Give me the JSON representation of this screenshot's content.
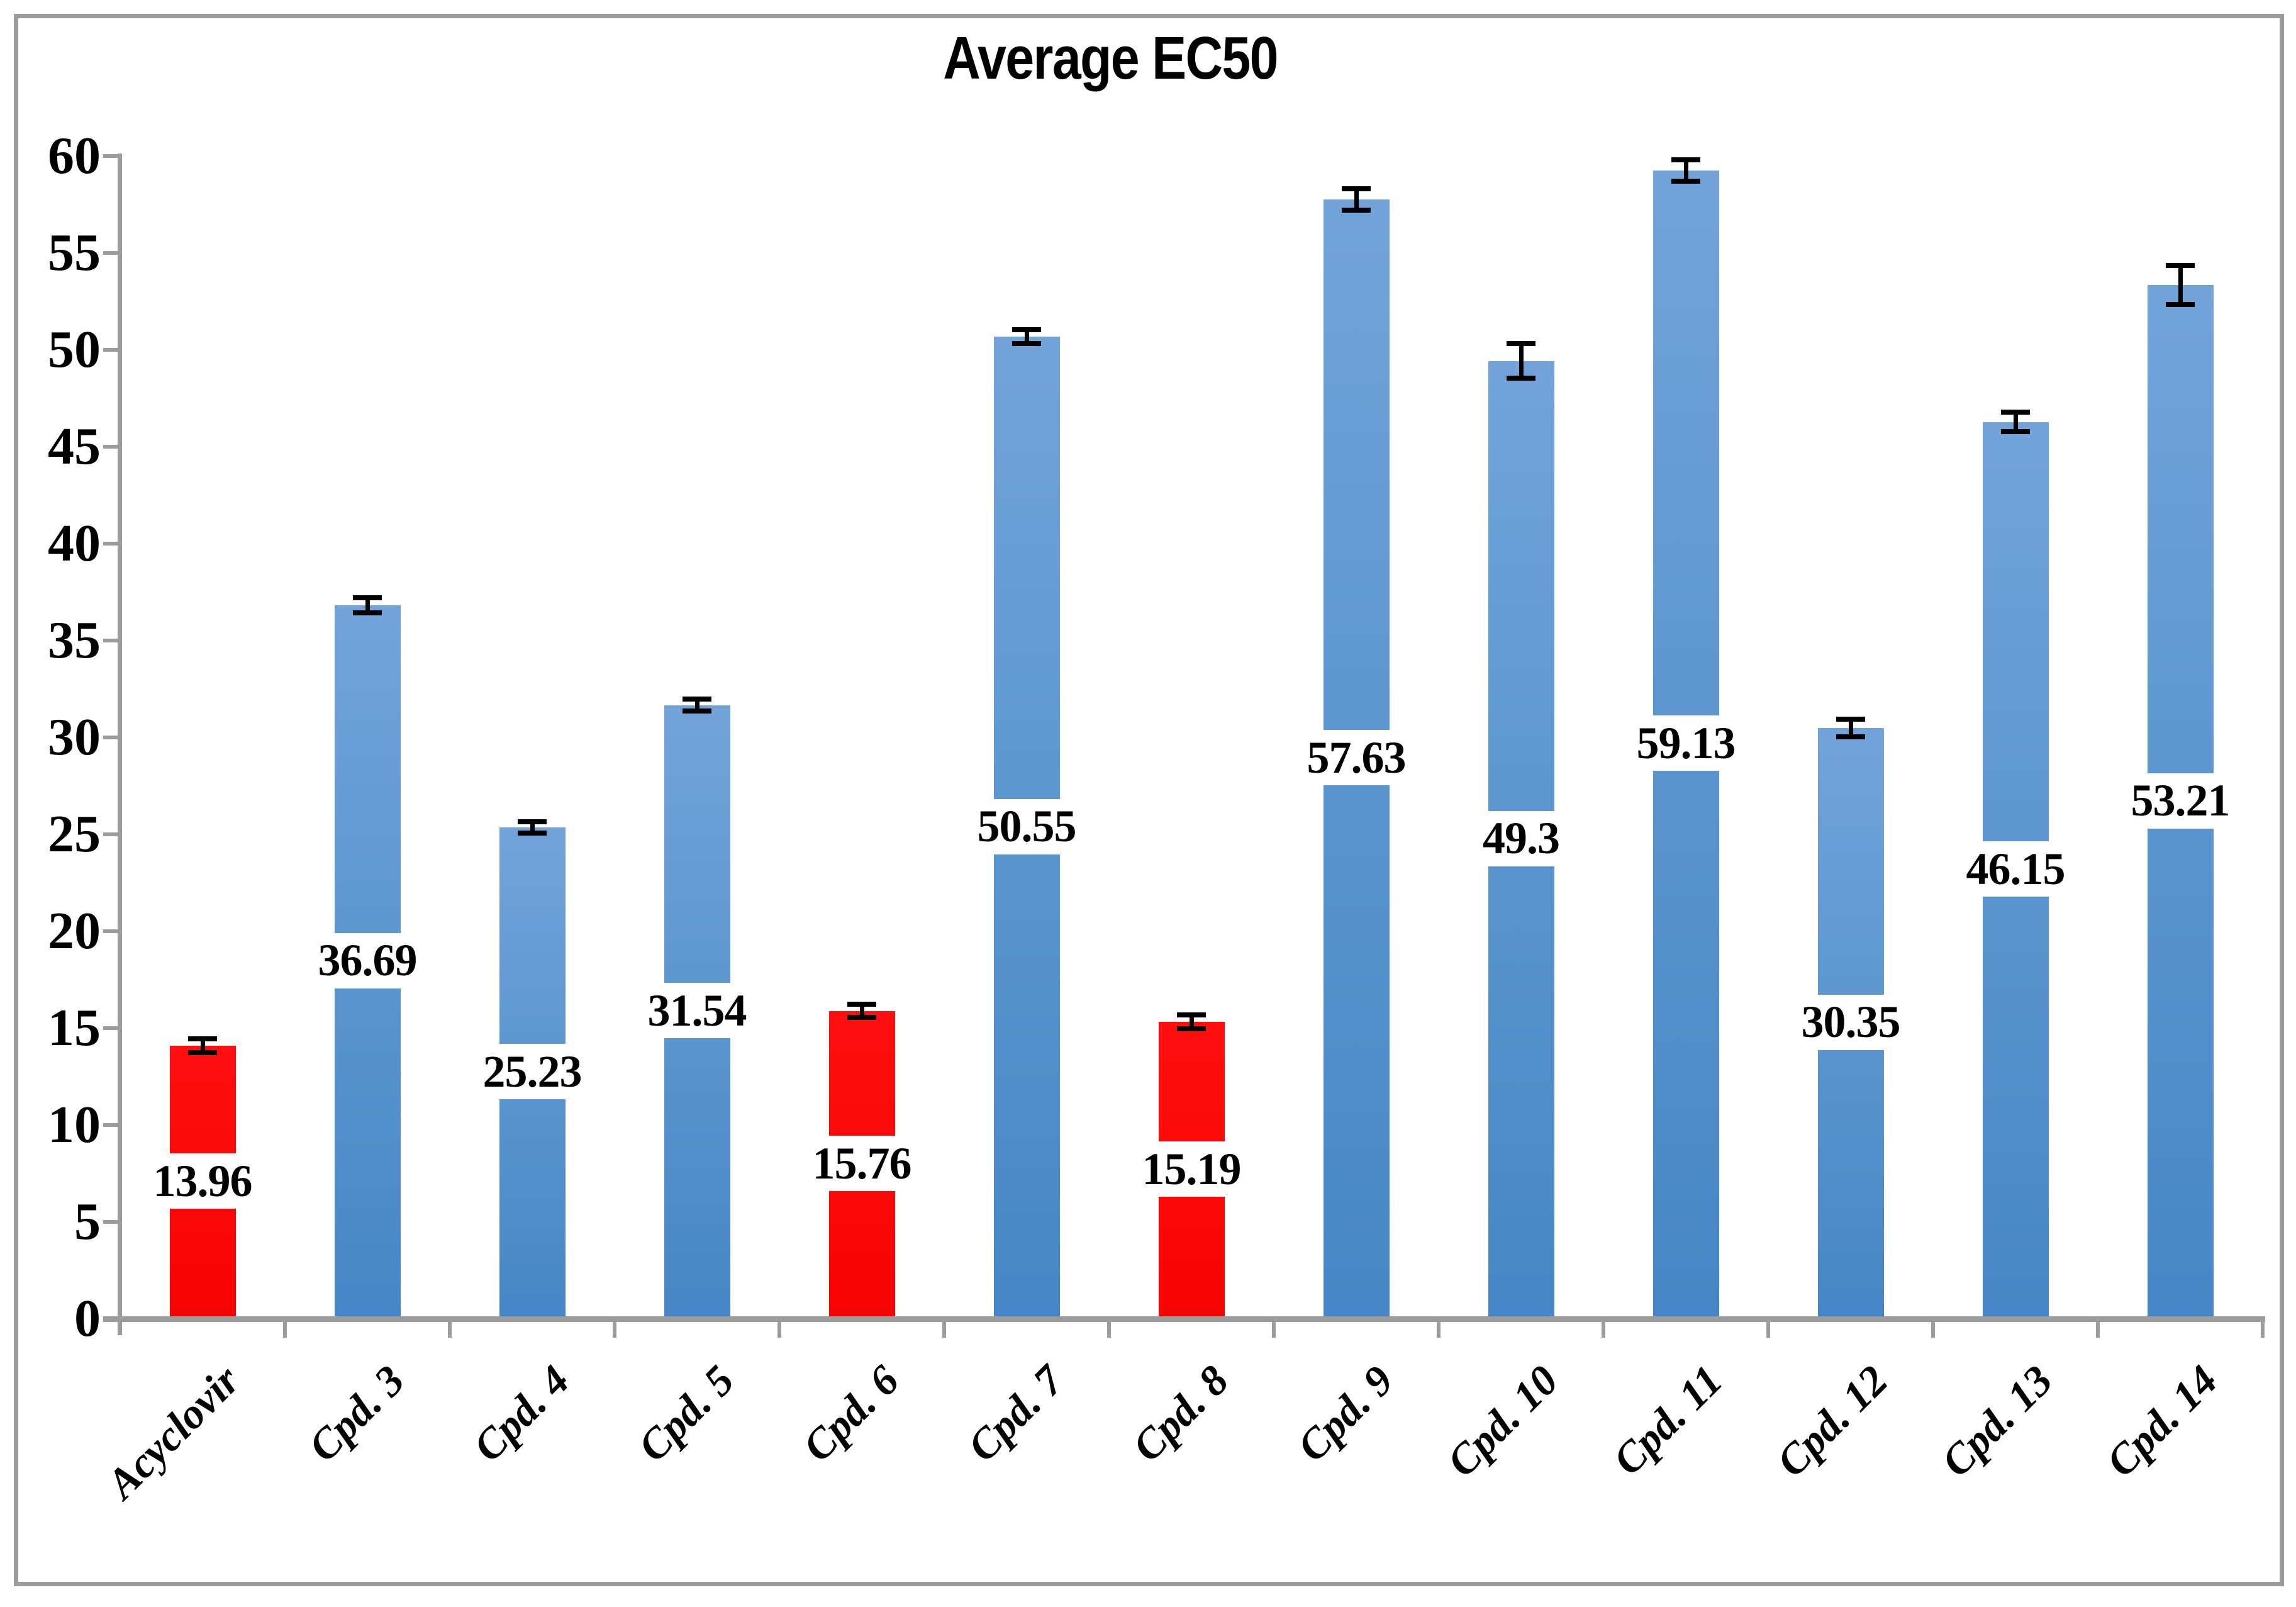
{
  "chart_data": {
    "type": "bar",
    "title": "Average EC50",
    "xlabel": "",
    "ylabel": "",
    "categories": [
      "Acyclovir",
      "Cpd. 3",
      "Cpd. 4",
      "Cpd. 5",
      "Cpd. 6",
      "Cpd. 7",
      "Cpd. 8",
      "Cpd. 9",
      "Cpd. 10",
      "Cpd. 11",
      "Cpd. 12",
      "Cpd. 13",
      "Cpd. 14"
    ],
    "values": [
      13.96,
      36.69,
      25.23,
      31.54,
      15.76,
      50.55,
      15.19,
      57.63,
      49.3,
      59.13,
      30.35,
      46.15,
      53.21
    ],
    "value_labels": [
      "13.96",
      "36.69",
      "25.23",
      "31.54",
      "15.76",
      "50.55",
      "15.19",
      "57.63",
      "49.3",
      "59.13",
      "30.35",
      "46.15",
      "53.21"
    ],
    "errors": [
      0.35,
      0.4,
      0.3,
      0.3,
      0.35,
      0.35,
      0.35,
      0.55,
      0.9,
      0.55,
      0.45,
      0.5,
      1.0
    ],
    "red_indices": [
      0,
      4,
      6
    ],
    "red_categories": [
      "Acyclovir",
      "Cpd. 6",
      "Cpd. 8"
    ],
    "y_ticks": [
      0,
      5,
      10,
      15,
      20,
      25,
      30,
      35,
      40,
      45,
      50,
      55,
      60
    ],
    "ylim": [
      0,
      60
    ],
    "grid": false,
    "legend": "none",
    "data_label_position": "inside-center",
    "category_label_rotation_deg": -45,
    "error_bar_style": "plus-minus-with-caps",
    "colors": {
      "bar_blue_top": "#72a4da",
      "bar_blue_bottom": "#4686c6",
      "bar_red": "#f70303",
      "axis_gray": "#9c9c9c",
      "border_gray": "#9c9c9c",
      "text_black": "#000000",
      "data_label_background": "#ffffff"
    }
  }
}
